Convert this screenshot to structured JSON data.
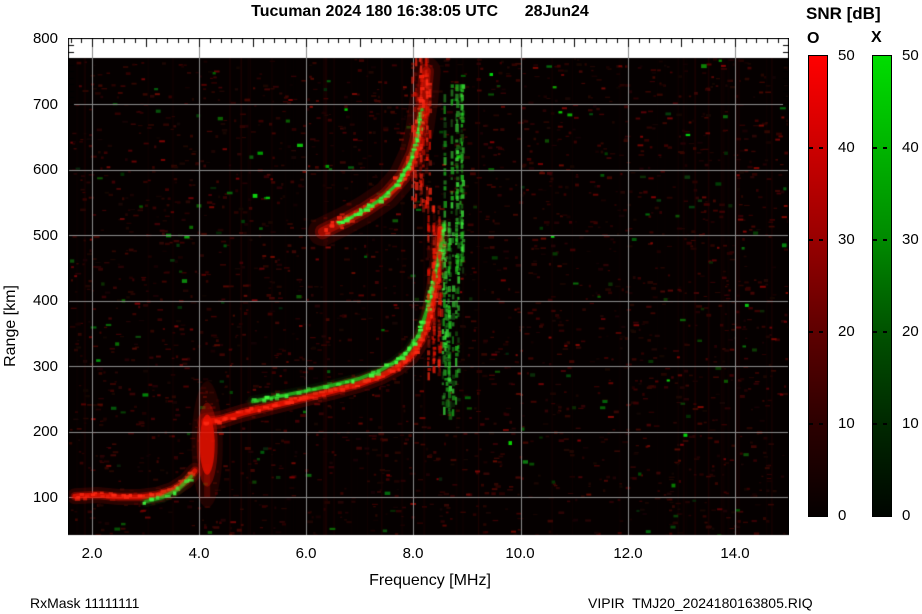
{
  "title": "Tucuman 2024 180 16:38:05 UTC      28Jun24",
  "axes": {
    "x_label": "Frequency [MHz]",
    "y_label": "Range [km]",
    "x_tick_labels": [
      "2.0",
      "4.0",
      "6.0",
      "8.0",
      "10.0",
      "12.0",
      "14.0"
    ],
    "y_tick_labels": [
      "800",
      "700",
      "600",
      "500",
      "400",
      "300",
      "200",
      "100"
    ]
  },
  "colorbar": {
    "title": "SNR [dB]",
    "o_label": "O",
    "x_label": "X",
    "tick_labels": [
      "50",
      "40",
      "30",
      "20",
      "10",
      "0"
    ],
    "o_stops": [
      "#ff0000",
      "#cc0000",
      "#980000",
      "#5e0000",
      "#2c0000",
      "#050000"
    ],
    "x_stops": [
      "#00dd00",
      "#00b400",
      "#008a00",
      "#005200",
      "#002800",
      "#000500"
    ]
  },
  "footer": {
    "left": "RxMask 11111111",
    "right": "VIPIR  TMJ20_2024180163805.RIQ"
  },
  "chart_data": {
    "type": "heatmap",
    "subtype": "ionogram",
    "title": "Tucuman 2024 180 16:38:05 UTC 28Jun24",
    "xlabel": "Frequency [MHz]",
    "ylabel": "Range [km]",
    "xlim": [
      1.55,
      15.0
    ],
    "ylim": [
      40,
      800
    ],
    "x_ticks": [
      2.0,
      4.0,
      6.0,
      8.0,
      10.0,
      12.0,
      14.0
    ],
    "y_ticks": [
      100,
      200,
      300,
      400,
      500,
      600,
      700,
      800
    ],
    "x_gridlines": [
      2,
      4,
      6,
      8,
      10,
      12,
      14
    ],
    "y_gridlines": [
      100,
      200,
      300,
      400,
      500,
      600,
      700
    ],
    "grid_on": true,
    "grid_color": "#8c8c8c",
    "bg": "#050000",
    "seed": 20240628,
    "colorbar": {
      "label": "SNR [dB]",
      "min": 0,
      "max": 50,
      "ticks": [
        0,
        10,
        20,
        30,
        40,
        50
      ],
      "channels": [
        {
          "name": "O",
          "color": "#ff0000"
        },
        {
          "name": "X",
          "color": "#00cc00"
        }
      ]
    },
    "colors": {
      "O": {
        "core": "#e81200",
        "bright": "#ff2a14"
      },
      "X": {
        "core": "#22c822",
        "bright": "#44ff44"
      }
    },
    "traces": [
      {
        "name": "E-layer O flat ~100km",
        "ch": "O",
        "style": "line",
        "w": 5,
        "halo": 0.16,
        "alpha": 0.8,
        "gap": 0.15,
        "pts": [
          [
            1.68,
            101
          ],
          [
            2.1,
            103
          ],
          [
            2.5,
            100
          ],
          [
            2.9,
            100
          ],
          [
            3.2,
            103
          ],
          [
            3.5,
            111
          ],
          [
            3.75,
            124
          ],
          [
            3.92,
            140
          ]
        ]
      },
      {
        "name": "E-layer X echo",
        "ch": "X",
        "style": "line",
        "w": 3.5,
        "halo": 0.08,
        "alpha": 0.6,
        "gap": 0.45,
        "pts": [
          [
            3.0,
            93
          ],
          [
            3.3,
            99
          ],
          [
            3.6,
            111
          ],
          [
            3.85,
            131
          ]
        ]
      },
      {
        "name": "F cusp blob 4.1MHz",
        "ch": "O",
        "style": "blob",
        "f": 4.15,
        "km": 180,
        "rf": 0.14,
        "rkm": 46,
        "tail_km": [
          100,
          150
        ]
      },
      {
        "name": "F-layer O trace",
        "ch": "O",
        "style": "line",
        "w": 5.5,
        "halo": 0.18,
        "alpha": 0.85,
        "gap": 0.12,
        "pts": [
          [
            4.12,
            215
          ],
          [
            4.4,
            218
          ],
          [
            4.8,
            228
          ],
          [
            5.3,
            238
          ],
          [
            5.9,
            250
          ],
          [
            6.5,
            262
          ],
          [
            7.0,
            273
          ],
          [
            7.4,
            285
          ],
          [
            7.7,
            298
          ],
          [
            7.95,
            315
          ],
          [
            8.15,
            340
          ],
          [
            8.3,
            375
          ],
          [
            8.4,
            420
          ],
          [
            8.47,
            465
          ],
          [
            8.5,
            510
          ]
        ]
      },
      {
        "name": "F-layer X trace",
        "ch": "X",
        "style": "line",
        "w": 3.5,
        "halo": 0.07,
        "alpha": 0.75,
        "gap": 0.45,
        "pts": [
          [
            5.0,
            246
          ],
          [
            5.5,
            254
          ],
          [
            6.0,
            262
          ],
          [
            6.5,
            271
          ],
          [
            7.0,
            281
          ],
          [
            7.35,
            292
          ],
          [
            7.65,
            306
          ],
          [
            7.9,
            323
          ],
          [
            8.1,
            348
          ],
          [
            8.25,
            385
          ],
          [
            8.38,
            430
          ],
          [
            8.5,
            478
          ],
          [
            8.57,
            515
          ]
        ]
      },
      {
        "name": "upper echo O diffuse",
        "ch": "O",
        "style": "line",
        "w": 9,
        "halo": 0.13,
        "alpha": 0.45,
        "gap": 0.3,
        "pts": [
          [
            6.3,
            505
          ],
          [
            6.7,
            521
          ],
          [
            7.1,
            539
          ],
          [
            7.5,
            561
          ],
          [
            7.8,
            589
          ],
          [
            8.0,
            624
          ],
          [
            8.12,
            663
          ],
          [
            8.2,
            710
          ],
          [
            8.24,
            750
          ]
        ]
      },
      {
        "name": "upper echo O inner arc",
        "ch": "O",
        "style": "line",
        "w": 3.5,
        "halo": 0.06,
        "alpha": 0.7,
        "gap": 0.3,
        "pts": [
          [
            6.6,
            520
          ],
          [
            7.0,
            534
          ],
          [
            7.35,
            550
          ],
          [
            7.7,
            572
          ],
          [
            7.95,
            600
          ],
          [
            8.1,
            635
          ]
        ]
      },
      {
        "name": "upper echo X bright line",
        "ch": "X",
        "style": "line",
        "w": 3,
        "halo": 0.06,
        "alpha": 0.9,
        "gap": 0.2,
        "pts": [
          [
            6.62,
            518
          ],
          [
            7.0,
            534
          ],
          [
            7.38,
            554
          ],
          [
            7.7,
            578
          ],
          [
            7.95,
            613
          ],
          [
            8.08,
            652
          ],
          [
            8.16,
            692
          ]
        ]
      }
    ],
    "streaks": [
      {
        "name": "O spread lower",
        "ch": "O",
        "f": [
          8.25,
          8.5
        ],
        "km": [
          290,
          545
        ],
        "n": 11
      },
      {
        "name": "O spread upper",
        "ch": "O",
        "f": [
          7.95,
          8.3
        ],
        "km": [
          545,
          770
        ],
        "n": 11
      },
      {
        "name": "X spread lower",
        "ch": "X",
        "f": [
          8.5,
          8.82
        ],
        "km": [
          230,
          520
        ],
        "n": 10
      },
      {
        "name": "X spread upper",
        "ch": "X",
        "f": [
          8.55,
          8.95
        ],
        "km": [
          450,
          730
        ],
        "n": 8
      }
    ],
    "noise": {
      "red_dashes": 2400,
      "red_bright": 220,
      "green_dashes": 150,
      "green_bright": 28,
      "columns": 46
    }
  }
}
